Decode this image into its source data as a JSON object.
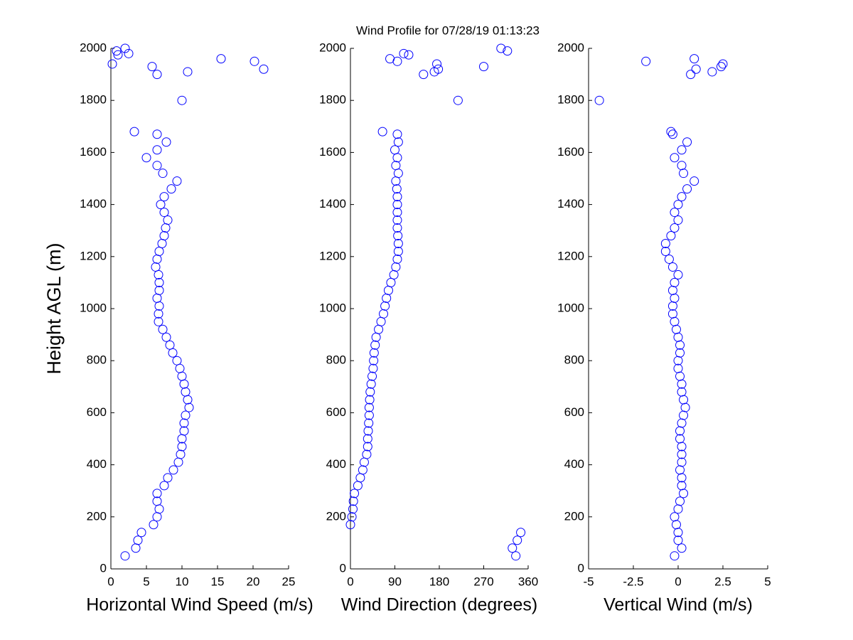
{
  "title": "Wind Profile for  07/28/19 01:13:23",
  "chart_data": [
    {
      "type": "scatter",
      "xlabel": "Horizontal Wind Speed (m/s)",
      "ylabel": "Height AGL (m)",
      "color": "#0000ff",
      "xlim": [
        0,
        25
      ],
      "xticks": [
        0,
        5,
        10,
        15,
        20,
        25
      ],
      "ylim": [
        0,
        2000
      ],
      "yticks": [
        0,
        200,
        400,
        600,
        800,
        1000,
        1200,
        1400,
        1600,
        1800,
        2000
      ],
      "x": [
        2,
        3.5,
        3.8,
        4.3,
        6,
        6.5,
        6.8,
        6.5,
        6.5,
        7.5,
        8,
        8.8,
        9.5,
        9.8,
        10,
        10,
        10.3,
        10.3,
        10.5,
        11,
        10.8,
        10.5,
        10.3,
        10,
        9.7,
        9.3,
        8.7,
        8.3,
        7.8,
        7.3,
        6.7,
        6.7,
        6.8,
        6.5,
        6.8,
        6.8,
        6.7,
        6.3,
        6.5,
        6.8,
        7.2,
        7.5,
        7.7,
        8,
        7.5,
        7,
        7.5,
        8.5,
        9.3,
        7.3,
        6.5,
        5,
        6.5,
        7.8,
        6.5,
        3.3,
        0.2,
        1,
        0.8,
        2,
        2.5,
        5.8,
        6.5,
        10,
        10.8,
        15.5,
        20.2,
        21.5
      ],
      "values": [
        50,
        80,
        110,
        140,
        170,
        200,
        230,
        260,
        290,
        320,
        350,
        380,
        410,
        440,
        470,
        500,
        530,
        560,
        590,
        620,
        650,
        680,
        710,
        740,
        770,
        800,
        830,
        860,
        890,
        920,
        950,
        980,
        1010,
        1040,
        1070,
        1100,
        1130,
        1160,
        1190,
        1220,
        1250,
        1280,
        1310,
        1340,
        1370,
        1400,
        1430,
        1460,
        1490,
        1520,
        1550,
        1580,
        1610,
        1640,
        1670,
        1680,
        1940,
        1975,
        1990,
        2000,
        1980,
        1930,
        1900,
        1800,
        1910,
        1960,
        1950,
        1920
      ]
    },
    {
      "type": "scatter",
      "xlabel": "Wind Direction (degrees)",
      "color": "#0000ff",
      "xlim": [
        0,
        360
      ],
      "xticks": [
        0,
        90,
        180,
        270,
        360
      ],
      "ylim": [
        0,
        2000
      ],
      "yticks": [
        0,
        200,
        400,
        600,
        800,
        1000,
        1200,
        1400,
        1600,
        1800,
        2000
      ],
      "x": [
        335,
        328,
        338,
        345,
        0,
        3,
        5,
        6,
        8,
        15,
        20,
        25,
        28,
        33,
        35,
        35,
        36,
        37,
        38,
        38,
        39,
        40,
        42,
        44,
        46,
        47,
        48,
        50,
        52,
        57,
        62,
        67,
        70,
        73,
        77,
        82,
        88,
        92,
        95,
        97,
        97,
        96,
        95,
        95,
        95,
        95,
        95,
        94,
        92,
        97,
        92,
        95,
        90,
        97,
        95,
        65,
        80,
        95,
        108,
        118,
        148,
        170,
        175,
        178,
        218,
        270,
        305,
        318
      ],
      "values": [
        50,
        80,
        110,
        140,
        170,
        200,
        230,
        260,
        290,
        320,
        350,
        380,
        410,
        440,
        470,
        500,
        530,
        560,
        590,
        620,
        650,
        680,
        710,
        740,
        770,
        800,
        830,
        860,
        890,
        920,
        950,
        980,
        1010,
        1040,
        1070,
        1100,
        1130,
        1160,
        1190,
        1220,
        1250,
        1280,
        1310,
        1340,
        1370,
        1400,
        1430,
        1460,
        1490,
        1520,
        1550,
        1580,
        1610,
        1640,
        1670,
        1680,
        1960,
        1950,
        1980,
        1975,
        1900,
        1910,
        1940,
        1920,
        1800,
        1930,
        2000,
        1990
      ]
    },
    {
      "type": "scatter",
      "xlabel": "Vertical Wind (m/s)",
      "color": "#0000ff",
      "xlim": [
        -5,
        5
      ],
      "xticks": [
        -5,
        -2.5,
        0,
        2.5,
        5
      ],
      "ylim": [
        0,
        2000
      ],
      "yticks": [
        0,
        200,
        400,
        600,
        800,
        1000,
        1200,
        1400,
        1600,
        1800,
        2000
      ],
      "x": [
        -0.2,
        0.2,
        0,
        0,
        -0.1,
        -0.2,
        0,
        0.1,
        0.3,
        0.2,
        0.2,
        0.1,
        0.2,
        0.2,
        0.2,
        0.1,
        0.1,
        0.2,
        0.3,
        0.4,
        0.3,
        0.2,
        0.2,
        0.1,
        0,
        0,
        0.1,
        0.1,
        0,
        -0.1,
        -0.2,
        -0.3,
        -0.3,
        -0.2,
        -0.3,
        -0.2,
        0,
        -0.3,
        -0.5,
        -0.7,
        -0.7,
        -0.4,
        -0.2,
        0,
        -0.2,
        0,
        0.2,
        0.5,
        0.9,
        0.3,
        0.2,
        -0.2,
        0.2,
        0.5,
        -0.3,
        -0.4,
        -4.4,
        -1.8,
        0.7,
        0.9,
        1,
        1.9,
        2.4,
        2.5
      ],
      "values": [
        50,
        80,
        110,
        140,
        170,
        200,
        230,
        260,
        290,
        320,
        350,
        380,
        410,
        440,
        470,
        500,
        530,
        560,
        590,
        620,
        650,
        680,
        710,
        740,
        770,
        800,
        830,
        860,
        890,
        920,
        950,
        980,
        1010,
        1040,
        1070,
        1100,
        1130,
        1160,
        1190,
        1220,
        1250,
        1280,
        1310,
        1340,
        1370,
        1400,
        1430,
        1460,
        1490,
        1520,
        1550,
        1580,
        1610,
        1640,
        1670,
        1680,
        1800,
        1950,
        1900,
        1960,
        1920,
        1910,
        1930,
        1940
      ]
    }
  ]
}
